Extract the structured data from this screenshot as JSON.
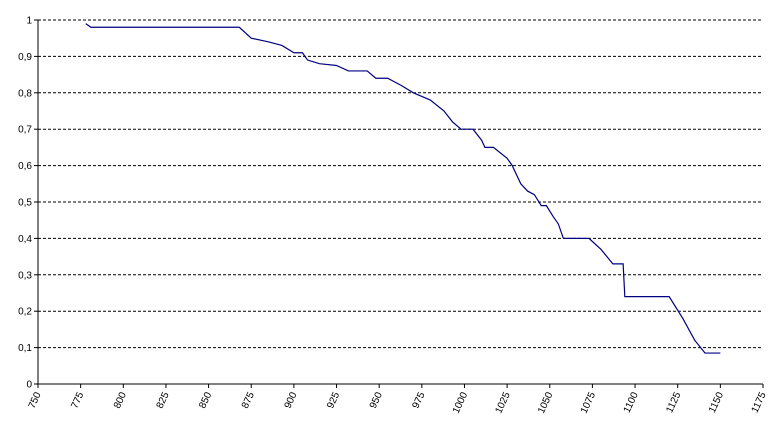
{
  "chart_data": {
    "type": "line",
    "x": [
      778,
      781,
      868,
      875,
      885,
      893,
      900,
      905,
      908,
      915,
      925,
      932,
      943,
      948,
      955,
      963,
      970,
      975,
      980,
      988,
      993,
      998,
      1005,
      1010,
      1012,
      1017,
      1025,
      1028,
      1033,
      1037,
      1041,
      1045,
      1048,
      1052,
      1055,
      1058,
      1073,
      1080,
      1087,
      1093,
      1094,
      1120,
      1128,
      1135,
      1141,
      1150
    ],
    "values": [
      0.99,
      0.98,
      0.98,
      0.95,
      0.94,
      0.93,
      0.91,
      0.91,
      0.89,
      0.88,
      0.875,
      0.86,
      0.86,
      0.84,
      0.84,
      0.82,
      0.8,
      0.79,
      0.78,
      0.75,
      0.72,
      0.7,
      0.7,
      0.67,
      0.65,
      0.65,
      0.62,
      0.6,
      0.55,
      0.53,
      0.52,
      0.49,
      0.49,
      0.46,
      0.44,
      0.4,
      0.4,
      0.37,
      0.33,
      0.33,
      0.24,
      0.24,
      0.18,
      0.12,
      0.085,
      0.085
    ],
    "color": "#000080",
    "xlim": [
      750,
      1175
    ],
    "xticks": [
      750,
      775,
      800,
      825,
      850,
      875,
      900,
      925,
      950,
      975,
      1000,
      1025,
      1050,
      1075,
      1100,
      1125,
      1150,
      1175
    ],
    "ylim": [
      0,
      1
    ],
    "yticks": [
      0,
      {
        "value": 0.1,
        "label": "0,1"
      },
      {
        "value": 0.2,
        "label": "0,2"
      },
      {
        "value": 0.3,
        "label": "0,3"
      },
      {
        "value": 0.4,
        "label": "0,4"
      },
      {
        "value": 0.5,
        "label": "0,5"
      },
      {
        "value": 0.6,
        "label": "0,6"
      },
      {
        "value": 0.7,
        "label": "0,7"
      },
      {
        "value": 0.8,
        "label": "0,8"
      },
      {
        "value": 0.9,
        "label": "0,9"
      },
      1
    ],
    "grid": true
  }
}
